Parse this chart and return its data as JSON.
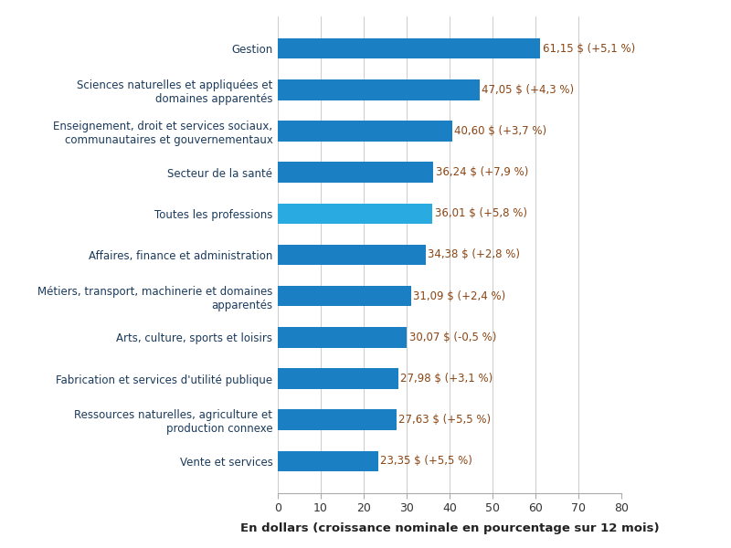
{
  "categories": [
    "Gestion",
    "Sciences naturelles et appliquées et\ndomaines apparentés",
    "Enseignement, droit et services sociaux,\ncommunautaires et gouvernementaux",
    "Secteur de la santé",
    "Toutes les professions",
    "Affaires, finance et administration",
    "Métiers, transport, machinerie et domaines\napparentés",
    "Arts, culture, sports et loisirs",
    "Fabrication et services d'utilité publique",
    "Ressources naturelles, agriculture et\nproduction connexe",
    "Vente et services"
  ],
  "values": [
    61.15,
    47.05,
    40.6,
    36.24,
    36.01,
    34.38,
    31.09,
    30.07,
    27.98,
    27.63,
    23.35
  ],
  "labels": [
    "61,15 $ (+5,1 %)",
    "47,05 $ (+4,3 %)",
    "40,60 $ (+3,7 %)",
    "36,24 $ (+7,9 %)",
    "36,01 $ (+5,8 %)",
    "34,38 $ (+2,8 %)",
    "31,09 $ (+2,4 %)",
    "30,07 $ (-0,5 %)",
    "27,98 $ (+3,1 %)",
    "27,63 $ (+5,5 %)",
    "23,35 $ (+5,5 %)"
  ],
  "bar_colors": [
    "#1b7fc4",
    "#1b7fc4",
    "#1b7fc4",
    "#1b7fc4",
    "#29abe2",
    "#1b7fc4",
    "#1b7fc4",
    "#1b7fc4",
    "#1b7fc4",
    "#1b7fc4",
    "#1b7fc4"
  ],
  "xlabel": "En dollars (croissance nominale en pourcentage sur 12 mois)",
  "xlim": [
    0,
    80
  ],
  "xticks": [
    0,
    10,
    20,
    30,
    40,
    50,
    60,
    70,
    80
  ],
  "label_color": "#8B4513",
  "category_color": "#1a3a5c",
  "background_color": "#ffffff",
  "label_fontsize": 8.5,
  "category_fontsize": 8.5,
  "xlabel_fontsize": 9.5,
  "bar_height": 0.5
}
